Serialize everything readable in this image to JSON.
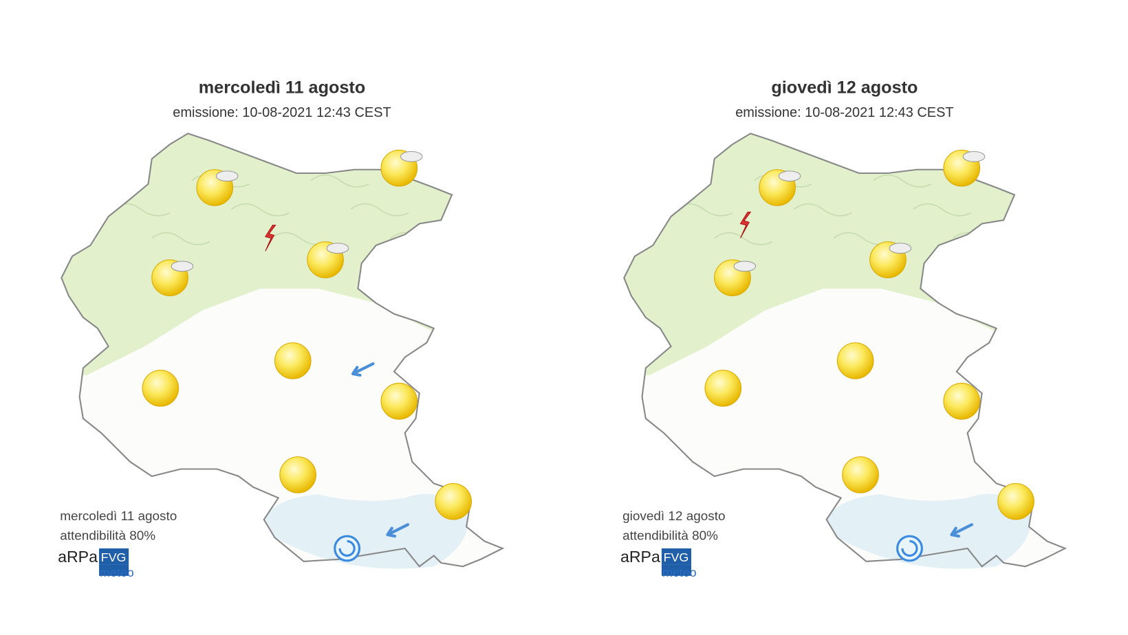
{
  "maps": [
    {
      "title": "mercoledì 11 agosto",
      "subtitle": "emissione: 10-08-2021 12:43 CEST",
      "footer_day": "mercoledì 11 agosto",
      "reliability": "attendibilità 80%",
      "logo": {
        "brand": "aRPa",
        "region": "FVG",
        "service": "meteo"
      }
    },
    {
      "title": "giovedì 12 agosto",
      "subtitle": "emissione: 10-08-2021 12:43 CEST",
      "footer_day": "giovedì 12 agosto",
      "reliability": "attendibilità 80%",
      "logo": {
        "brand": "aRPa",
        "region": "FVG",
        "service": "meteo"
      }
    }
  ]
}
